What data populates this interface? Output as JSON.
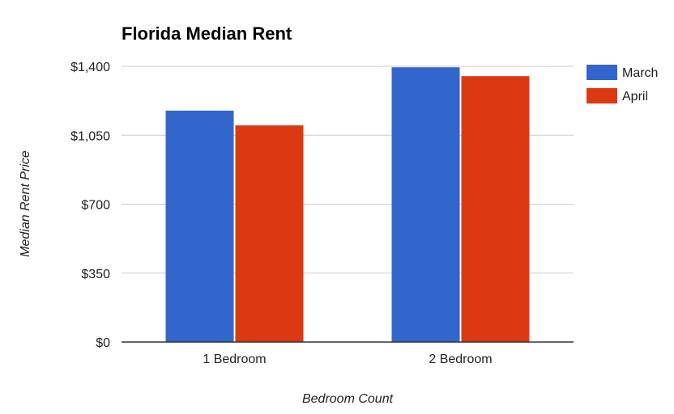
{
  "chart_data": {
    "type": "bar",
    "title": "Florida Median Rent",
    "xlabel": "Bedroom Count",
    "ylabel": "Median Rent Price",
    "categories": [
      "1 Bedroom",
      "2 Bedroom"
    ],
    "series": [
      {
        "name": "March",
        "values": [
          1175,
          1395
        ],
        "color": "#3366cc"
      },
      {
        "name": "April",
        "values": [
          1100,
          1350
        ],
        "color": "#dc3912"
      }
    ],
    "ylim": [
      0,
      1400
    ],
    "yticks": [
      0,
      350,
      700,
      1050,
      1400
    ],
    "ytick_labels": [
      "$0",
      "$350",
      "$700",
      "$1,050",
      "$1,400"
    ],
    "grid": true,
    "legend_position": "right"
  }
}
